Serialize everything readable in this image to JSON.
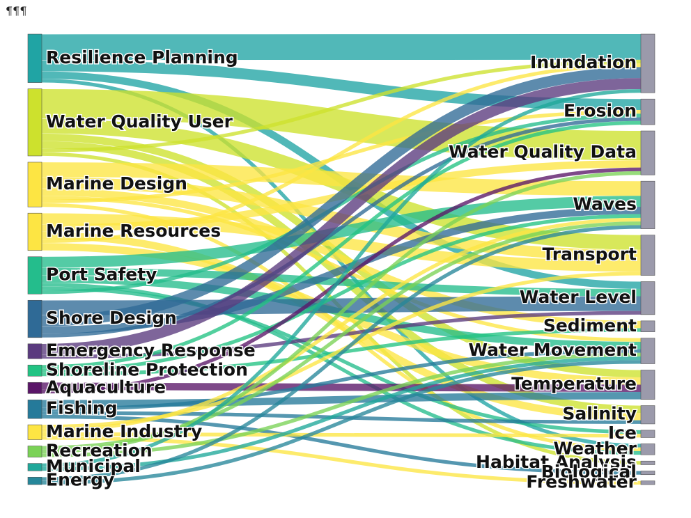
{
  "header": {
    "marker": "¶¶¶"
  },
  "chart_data": {
    "type": "sankey",
    "title": "",
    "sources": [
      {
        "name": "Resilience Planning",
        "color": "#20a4a4"
      },
      {
        "name": "Water Quality User",
        "color": "#cde12d"
      },
      {
        "name": "Marine Design",
        "color": "#fde543"
      },
      {
        "name": "Marine Resources",
        "color": "#fde543"
      },
      {
        "name": "Port Safety",
        "color": "#24bd8c"
      },
      {
        "name": "Shore Design",
        "color": "#2f6a96"
      },
      {
        "name": "Emergency Response",
        "color": "#5a3a7e"
      },
      {
        "name": "Shoreline Protection",
        "color": "#22c383"
      },
      {
        "name": "Aquaculture",
        "color": "#5a1668"
      },
      {
        "name": "Fishing",
        "color": "#257a9a"
      },
      {
        "name": "Marine Industry",
        "color": "#fde543"
      },
      {
        "name": "Recreation",
        "color": "#7ad256"
      },
      {
        "name": "Municipal",
        "color": "#1fa89a"
      },
      {
        "name": "Energy",
        "color": "#26879a"
      }
    ],
    "targets": [
      "Inundation",
      "Erosion",
      "Water Quality Data",
      "Waves",
      "Transport",
      "Water Level",
      "Sediment",
      "Water Movement",
      "Temperature",
      "Salinity",
      "Ice",
      "Weather",
      "Habitat Analysis",
      "Biological",
      "Freshwater"
    ],
    "target_color": "#9b9aab",
    "links": [
      {
        "source": "Resilience Planning",
        "target": "Inundation",
        "value": 7
      },
      {
        "source": "Resilience Planning",
        "target": "Erosion",
        "value": 3
      },
      {
        "source": "Resilience Planning",
        "target": "Water Level",
        "value": 2
      },
      {
        "source": "Resilience Planning",
        "target": "Weather",
        "value": 1
      },
      {
        "source": "Water Quality User",
        "target": "Water Quality Data",
        "value": 8
      },
      {
        "source": "Water Quality User",
        "target": "Transport",
        "value": 4
      },
      {
        "source": "Water Quality User",
        "target": "Temperature",
        "value": 2
      },
      {
        "source": "Water Quality User",
        "target": "Salinity",
        "value": 2
      },
      {
        "source": "Water Quality User",
        "target": "Inundation",
        "value": 1
      },
      {
        "source": "Water Quality User",
        "target": "Habitat Analysis",
        "value": 1
      },
      {
        "source": "Marine Design",
        "target": "Waves",
        "value": 4
      },
      {
        "source": "Marine Design",
        "target": "Transport",
        "value": 3
      },
      {
        "source": "Marine Design",
        "target": "Sediment",
        "value": 2
      },
      {
        "source": "Marine Design",
        "target": "Water Movement",
        "value": 1
      },
      {
        "source": "Marine Design",
        "target": "Erosion",
        "value": 1
      },
      {
        "source": "Marine Design",
        "target": "Weather",
        "value": 1
      },
      {
        "source": "Marine Resources",
        "target": "Transport",
        "value": 3
      },
      {
        "source": "Marine Resources",
        "target": "Water Quality Data",
        "value": 2
      },
      {
        "source": "Marine Resources",
        "target": "Salinity",
        "value": 2
      },
      {
        "source": "Marine Resources",
        "target": "Inundation",
        "value": 1
      },
      {
        "source": "Marine Resources",
        "target": "Temperature",
        "value": 2
      },
      {
        "source": "Port Safety",
        "target": "Waves",
        "value": 3
      },
      {
        "source": "Port Safety",
        "target": "Water Level",
        "value": 2
      },
      {
        "source": "Port Safety",
        "target": "Water Movement",
        "value": 2
      },
      {
        "source": "Port Safety",
        "target": "Weather",
        "value": 1
      },
      {
        "source": "Port Safety",
        "target": "Ice",
        "value": 1
      },
      {
        "source": "Port Safety",
        "target": "Erosion",
        "value": 1
      },
      {
        "source": "Shore Design",
        "target": "Water Level",
        "value": 4
      },
      {
        "source": "Shore Design",
        "target": "Inundation",
        "value": 3
      },
      {
        "source": "Shore Design",
        "target": "Waves",
        "value": 2
      },
      {
        "source": "Shore Design",
        "target": "Erosion",
        "value": 1
      },
      {
        "source": "Emergency Response",
        "target": "Inundation",
        "value": 3
      },
      {
        "source": "Emergency Response",
        "target": "Water Level",
        "value": 1
      },
      {
        "source": "Shoreline Protection",
        "target": "Erosion",
        "value": 1
      },
      {
        "source": "Shoreline Protection",
        "target": "Waves",
        "value": 1
      },
      {
        "source": "Shoreline Protection",
        "target": "Sediment",
        "value": 1
      },
      {
        "source": "Aquaculture",
        "target": "Temperature",
        "value": 2
      },
      {
        "source": "Aquaculture",
        "target": "Water Quality Data",
        "value": 1
      },
      {
        "source": "Fishing",
        "target": "Temperature",
        "value": 2
      },
      {
        "source": "Fishing",
        "target": "Water Movement",
        "value": 1
      },
      {
        "source": "Fishing",
        "target": "Salinity",
        "value": 1
      },
      {
        "source": "Fishing",
        "target": "Biological",
        "value": 1
      },
      {
        "source": "Marine Industry",
        "target": "Transport",
        "value": 1
      },
      {
        "source": "Marine Industry",
        "target": "Waves",
        "value": 1
      },
      {
        "source": "Marine Industry",
        "target": "Ice",
        "value": 1
      },
      {
        "source": "Marine Industry",
        "target": "Freshwater",
        "value": 1
      },
      {
        "source": "Recreation",
        "target": "Waves",
        "value": 1
      },
      {
        "source": "Recreation",
        "target": "Water Quality Data",
        "value": 1
      },
      {
        "source": "Recreation",
        "target": "Water Movement",
        "value": 1
      },
      {
        "source": "Municipal",
        "target": "Inundation",
        "value": 1
      },
      {
        "source": "Municipal",
        "target": "Water Movement",
        "value": 1
      },
      {
        "source": "Energy",
        "target": "Waves",
        "value": 1
      },
      {
        "source": "Energy",
        "target": "Water Movement",
        "value": 1
      }
    ]
  }
}
